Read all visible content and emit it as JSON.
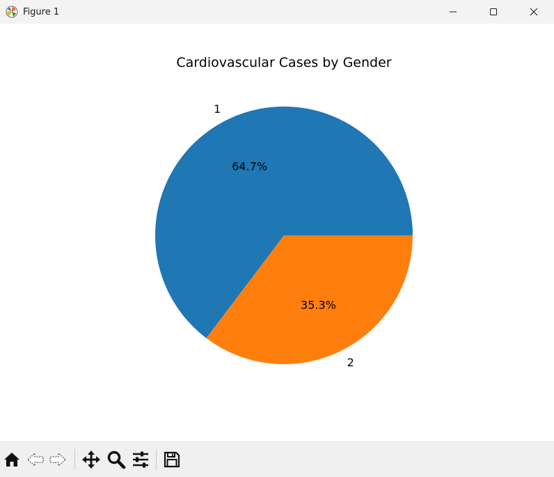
{
  "window": {
    "title": "Figure 1",
    "controls": [
      "minimize-icon",
      "maximize-icon",
      "close-icon"
    ]
  },
  "chart_data": {
    "type": "pie",
    "title": "Cardiovascular Cases by Gender",
    "labels": [
      "1",
      "2"
    ],
    "values": [
      64.7,
      35.3
    ],
    "autopct": [
      "64.7%",
      "35.3%"
    ],
    "colors": [
      "#1f77b4",
      "#ff7f0e"
    ],
    "start_angle": 0,
    "direction": "counterclockwise"
  },
  "toolbar": {
    "icons": [
      "home-icon",
      "back-icon",
      "forward-icon",
      "pan-icon",
      "zoom-icon",
      "configure-icon",
      "save-icon"
    ]
  }
}
